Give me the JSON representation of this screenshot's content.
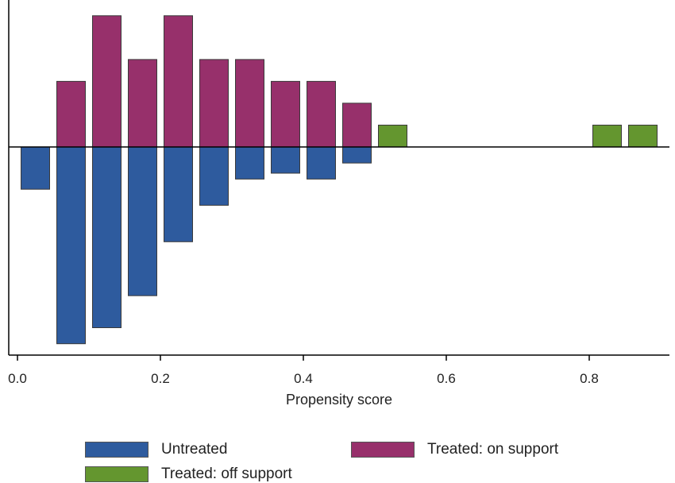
{
  "chart_data": {
    "type": "bar",
    "title": "",
    "xlabel": "Propensity score",
    "ylabel": "",
    "xlim": [
      -0.015,
      0.915
    ],
    "ylim": [
      -0.135,
      0.09
    ],
    "xticks": [
      {
        "value": 0.0,
        "label": "0.0"
      },
      {
        "value": 0.2,
        "label": "0.2"
      },
      {
        "value": 0.4,
        "label": "0.4"
      },
      {
        "value": 0.6,
        "label": "0.6"
      },
      {
        "value": 0.8,
        "label": "0.8"
      }
    ],
    "bin_width": 0.04,
    "series": [
      {
        "name": "Untreated",
        "color": "#2e5b9e",
        "bars": [
          {
            "x0": 0.005,
            "value": -0.029
          },
          {
            "x0": 0.055,
            "value": -0.135
          },
          {
            "x0": 0.105,
            "value": -0.124
          },
          {
            "x0": 0.155,
            "value": -0.102
          },
          {
            "x0": 0.205,
            "value": -0.065
          },
          {
            "x0": 0.255,
            "value": -0.04
          },
          {
            "x0": 0.305,
            "value": -0.022
          },
          {
            "x0": 0.355,
            "value": -0.018
          },
          {
            "x0": 0.405,
            "value": -0.022
          },
          {
            "x0": 0.455,
            "value": -0.011
          }
        ]
      },
      {
        "name": "Treated: on support",
        "color": "#97306b",
        "bars": [
          {
            "x0": 0.055,
            "value": 0.045
          },
          {
            "x0": 0.105,
            "value": 0.09
          },
          {
            "x0": 0.155,
            "value": 0.06
          },
          {
            "x0": 0.205,
            "value": 0.09
          },
          {
            "x0": 0.255,
            "value": 0.06
          },
          {
            "x0": 0.305,
            "value": 0.06
          },
          {
            "x0": 0.355,
            "value": 0.045
          },
          {
            "x0": 0.405,
            "value": 0.045
          },
          {
            "x0": 0.455,
            "value": 0.03
          }
        ]
      },
      {
        "name": "Treated: off support",
        "color": "#64962f",
        "bars": [
          {
            "x0": 0.505,
            "value": 0.015
          },
          {
            "x0": 0.805,
            "value": 0.015
          },
          {
            "x0": 0.855,
            "value": 0.015
          }
        ]
      }
    ],
    "legend": {
      "position": "bottom",
      "items": [
        "Untreated",
        "Treated: on support",
        "Treated: off support"
      ]
    }
  }
}
